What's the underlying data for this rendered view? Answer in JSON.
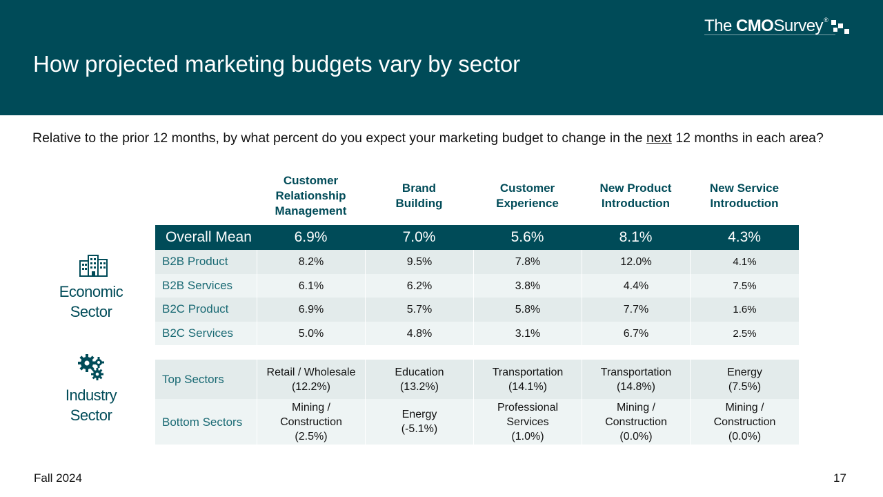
{
  "header": {
    "title": "How projected marketing budgets vary by sector",
    "logo": {
      "the": "The",
      "cmo": "CMO",
      "survey": "Survey",
      "reg": "®"
    }
  },
  "question": {
    "before": "Relative to the prior 12 months, by what percent do you expect your marketing budget to change in the ",
    "underlined": "next",
    "after": " 12 months in each area?"
  },
  "columns": [
    {
      "line1": "Customer",
      "line2": "Relationship",
      "line3": "Management"
    },
    {
      "line1": "Brand",
      "line2": "Building"
    },
    {
      "line1": "Customer",
      "line2": "Experience"
    },
    {
      "line1": "New Product",
      "line2": "Introduction"
    },
    {
      "line1": "New Service",
      "line2": "Introduction"
    }
  ],
  "overall_mean": {
    "label": "Overall Mean",
    "values": [
      "6.9%",
      "7.0%",
      "5.6%",
      "8.1%",
      "4.3%"
    ]
  },
  "economic_rows": [
    {
      "label": "B2B Product",
      "values": [
        "8.2%",
        "9.5%",
        "7.8%",
        "12.0%",
        "4.1%"
      ]
    },
    {
      "label": "B2B Services",
      "values": [
        "6.1%",
        "6.2%",
        "3.8%",
        "4.4%",
        "7.5%"
      ]
    },
    {
      "label": "B2C Product",
      "values": [
        "6.9%",
        "5.7%",
        "5.8%",
        "7.7%",
        "1.6%"
      ]
    },
    {
      "label": "B2C Services",
      "values": [
        "5.0%",
        "4.8%",
        "3.1%",
        "6.7%",
        "2.5%"
      ]
    }
  ],
  "industry_rows": [
    {
      "label": "Top Sectors",
      "cells": [
        {
          "l1": "Retail / Wholesale",
          "l2": "(12.2%)"
        },
        {
          "l1": "Education",
          "l2": "(13.2%)"
        },
        {
          "l1": "Transportation",
          "l2": "(14.1%)"
        },
        {
          "l1": "Transportation",
          "l2": "(14.8%)"
        },
        {
          "l1": "Energy",
          "l2": "(7.5%)"
        }
      ]
    },
    {
      "label": "Bottom Sectors",
      "cells": [
        {
          "l1": "Mining /",
          "l2": "Construction",
          "l3": "(2.5%)"
        },
        {
          "l1": "Energy",
          "l2": "(-5.1%)"
        },
        {
          "l1": "Professional",
          "l2": "Services",
          "l3": "(1.0%)"
        },
        {
          "l1": "Mining /",
          "l2": "Construction",
          "l3": "(0.0%)"
        },
        {
          "l1": "Mining /",
          "l2": "Construction",
          "l3": "(0.0%)"
        }
      ]
    }
  ],
  "sections": {
    "economic": {
      "line1": "Economic",
      "line2": "Sector",
      "icon": "buildings-icon"
    },
    "industry": {
      "line1": "Industry",
      "line2": "Sector",
      "icon": "gears-icon"
    }
  },
  "footer": {
    "left": "Fall 2024",
    "page": "17"
  },
  "colors": {
    "brand": "#004b58",
    "row_a": "#e3ebeb",
    "row_b": "#eef4f4",
    "label_teal": "#1a6a74"
  }
}
